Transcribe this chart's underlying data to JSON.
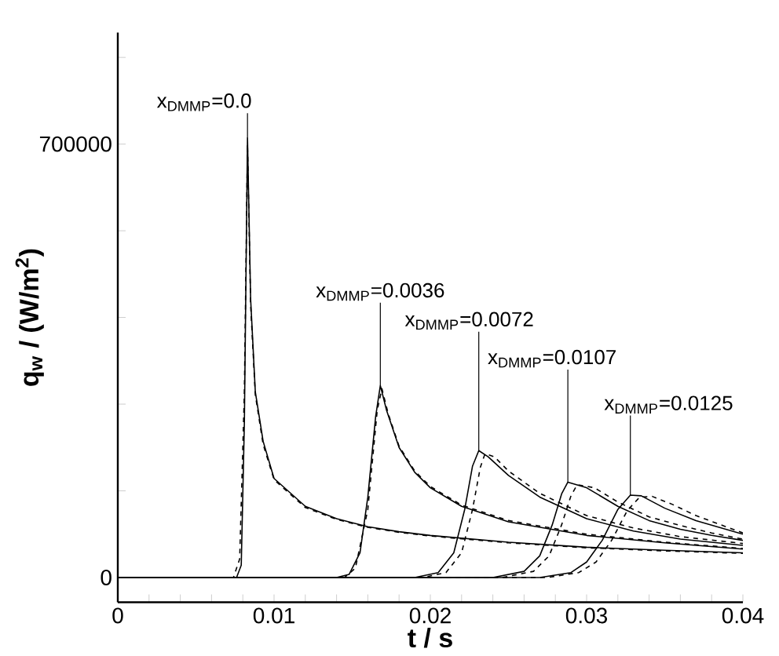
{
  "chart_data": {
    "type": "line",
    "xlabel": "t / s",
    "ylabel": "q$_{w}$ / (W/m$^{2}$)",
    "xlim": [
      0,
      0.04
    ],
    "ylim": [
      -40000,
      880000
    ],
    "xticks": [
      0,
      {
        "value": 0.002,
        "label": null
      },
      {
        "value": 0.004,
        "label": null
      },
      {
        "value": 0.006,
        "label": null
      },
      {
        "value": 0.008,
        "label": null
      },
      0.01,
      {
        "value": 0.012,
        "label": null
      },
      {
        "value": 0.014,
        "label": null
      },
      {
        "value": 0.016,
        "label": null
      },
      {
        "value": 0.018,
        "label": null
      },
      0.02,
      {
        "value": 0.022,
        "label": null
      },
      {
        "value": 0.024,
        "label": null
      },
      {
        "value": 0.026,
        "label": null
      },
      {
        "value": 0.028,
        "label": null
      },
      0.03,
      {
        "value": 0.032,
        "label": null
      },
      {
        "value": 0.034,
        "label": null
      },
      {
        "value": 0.036,
        "label": null
      },
      {
        "value": 0.038,
        "label": null
      },
      0.04
    ],
    "yticks": [
      0,
      {
        "value": 140000,
        "label": null
      },
      {
        "value": 280000,
        "label": null
      },
      {
        "value": 420000,
        "label": null
      },
      {
        "value": 560000,
        "label": null
      },
      700000,
      {
        "value": 840000,
        "label": null
      }
    ],
    "series": [
      {
        "color": "#000000",
        "line_style": "solid",
        "x": [
          0,
          0.0076,
          0.0079,
          0.0081,
          0.0083,
          0.0085,
          0.0088,
          0.0093,
          0.01,
          0.012,
          0.014,
          0.016,
          0.018,
          0.02,
          0.025,
          0.03,
          0.035,
          0.04
        ],
        "values": [
          0,
          0,
          20000,
          250000,
          710000,
          450000,
          300000,
          220000,
          160000,
          115000,
          95000,
          82000,
          74000,
          68000,
          57000,
          49000,
          44000,
          40000
        ]
      },
      {
        "color": "#000000",
        "line_style": "dashed",
        "x": [
          0,
          0.0074,
          0.0078,
          0.0081,
          0.0083,
          0.0085,
          0.0088,
          0.0093,
          0.01,
          0.012,
          0.014,
          0.016,
          0.018,
          0.02,
          0.025,
          0.03,
          0.035,
          0.04
        ],
        "values": [
          0,
          0,
          30000,
          300000,
          700000,
          440000,
          295000,
          215000,
          158000,
          113000,
          94000,
          81000,
          73000,
          67000,
          56000,
          48000,
          43000,
          39000
        ]
      },
      {
        "color": "#000000",
        "line_style": "solid",
        "x": [
          0,
          0.014,
          0.0148,
          0.0155,
          0.016,
          0.0165,
          0.0168,
          0.0172,
          0.018,
          0.019,
          0.02,
          0.022,
          0.025,
          0.03,
          0.035,
          0.04
        ],
        "values": [
          0,
          0,
          5000,
          40000,
          130000,
          260000,
          310000,
          270000,
          210000,
          170000,
          145000,
          115000,
          90000,
          68000,
          56000,
          46000
        ]
      },
      {
        "color": "#000000",
        "line_style": "dashed",
        "x": [
          0,
          0.0145,
          0.0152,
          0.016,
          0.0166,
          0.0169,
          0.0173,
          0.018,
          0.019,
          0.02,
          0.022,
          0.025,
          0.03,
          0.035,
          0.04
        ],
        "values": [
          0,
          0,
          15000,
          110000,
          270000,
          305000,
          265000,
          212000,
          172000,
          147000,
          117000,
          92000,
          70000,
          57000,
          47000
        ]
      },
      {
        "color": "#000000",
        "line_style": "solid",
        "x": [
          0,
          0.019,
          0.0205,
          0.0215,
          0.0222,
          0.0227,
          0.0231,
          0.0237,
          0.025,
          0.027,
          0.03,
          0.033,
          0.036,
          0.04
        ],
        "values": [
          0,
          0,
          8000,
          40000,
          110000,
          180000,
          205000,
          195000,
          165000,
          130000,
          95000,
          75000,
          62000,
          52000
        ]
      },
      {
        "color": "#000000",
        "line_style": "dashed",
        "x": [
          0,
          0.0195,
          0.021,
          0.022,
          0.0227,
          0.0232,
          0.0235,
          0.0241,
          0.025,
          0.027,
          0.03,
          0.033,
          0.036,
          0.04
        ],
        "values": [
          0,
          0,
          8000,
          40000,
          110000,
          178000,
          200000,
          195000,
          172000,
          136000,
          100000,
          80000,
          66000,
          55000
        ]
      },
      {
        "color": "#000000",
        "line_style": "solid",
        "x": [
          0,
          0.024,
          0.026,
          0.027,
          0.0278,
          0.0284,
          0.0288,
          0.03,
          0.032,
          0.034,
          0.036,
          0.038,
          0.04
        ],
        "values": [
          0,
          0,
          10000,
          35000,
          85000,
          135000,
          154000,
          145000,
          115000,
          92000,
          78000,
          68000,
          60000
        ]
      },
      {
        "color": "#000000",
        "line_style": "dashed",
        "x": [
          0,
          0.0246,
          0.0266,
          0.0276,
          0.0284,
          0.029,
          0.0294,
          0.0305,
          0.032,
          0.034,
          0.036,
          0.038,
          0.04
        ],
        "values": [
          0,
          0,
          10000,
          35000,
          85000,
          132000,
          150000,
          145000,
          122000,
          98000,
          84000,
          72000,
          62000
        ]
      },
      {
        "color": "#000000",
        "line_style": "solid",
        "x": [
          0,
          0.027,
          0.029,
          0.03,
          0.031,
          0.032,
          0.0328,
          0.0335,
          0.035,
          0.037,
          0.04
        ],
        "values": [
          0,
          0,
          8000,
          25000,
          60000,
          110000,
          133000,
          132000,
          112000,
          92000,
          70000
        ]
      },
      {
        "color": "#000000",
        "line_style": "dashed",
        "x": [
          0,
          0.0275,
          0.0295,
          0.0306,
          0.0316,
          0.0326,
          0.0334,
          0.0342,
          0.0355,
          0.037,
          0.04
        ],
        "values": [
          0,
          0,
          8000,
          25000,
          60000,
          108000,
          130000,
          131000,
          118000,
          100000,
          72000
        ]
      }
    ],
    "annotations": [
      {
        "text": "x$_{DMMP}$=0.0",
        "x": 0.0083,
        "y": 710000
      },
      {
        "text": "x$_{DMMP}$=0.0036",
        "x": 0.0168,
        "y": 310000
      },
      {
        "text": "x$_{DMMP}$=0.0072",
        "x": 0.0231,
        "y": 205000
      },
      {
        "text": "x$_{DMMP}$=0.0107",
        "x": 0.0288,
        "y": 154000
      },
      {
        "text": "x$_{DMMP}$=0.0125",
        "x": 0.0328,
        "y": 133000
      }
    ]
  }
}
